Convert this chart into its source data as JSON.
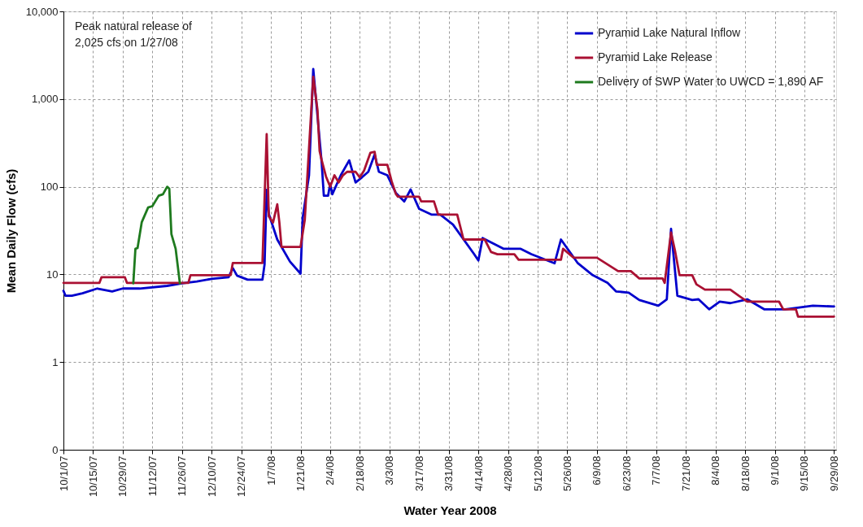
{
  "chart_data": {
    "type": "line",
    "xlabel": "Water Year 2008",
    "ylabel": "Mean Daily Flow (cfs)",
    "annotations": [
      "Peak natural release of\n2,025  cfs on 1/27/08"
    ],
    "xlim": [
      "2007-10-01",
      "2008-09-30"
    ],
    "xticks": [
      {
        "value": "2007-10-01",
        "label": "10/1/07"
      },
      {
        "value": "2007-10-15",
        "label": "10/15/07"
      },
      {
        "value": "2007-10-29",
        "label": "10/29/07"
      },
      {
        "value": "2007-11-12",
        "label": "11/12/07"
      },
      {
        "value": "2007-11-26",
        "label": "11/26/07"
      },
      {
        "value": "2007-12-10",
        "label": "12/10/07"
      },
      {
        "value": "2007-12-24",
        "label": "12/24/07"
      },
      {
        "value": "2008-01-07",
        "label": "1/7/08"
      },
      {
        "value": "2008-01-21",
        "label": "1/21/08"
      },
      {
        "value": "2008-02-04",
        "label": "2/4/08"
      },
      {
        "value": "2008-02-18",
        "label": "2/18/08"
      },
      {
        "value": "2008-03-03",
        "label": "3/3/08"
      },
      {
        "value": "2008-03-17",
        "label": "3/17/08"
      },
      {
        "value": "2008-03-31",
        "label": "3/31/08"
      },
      {
        "value": "2008-04-14",
        "label": "4/14/08"
      },
      {
        "value": "2008-04-28",
        "label": "4/28/08"
      },
      {
        "value": "2008-05-12",
        "label": "5/12/08"
      },
      {
        "value": "2008-05-26",
        "label": "5/26/08"
      },
      {
        "value": "2008-06-09",
        "label": "6/9/08"
      },
      {
        "value": "2008-06-23",
        "label": "6/23/08"
      },
      {
        "value": "2008-07-07",
        "label": "7/7/08"
      },
      {
        "value": "2008-07-21",
        "label": "7/21/08"
      },
      {
        "value": "2008-08-04",
        "label": "8/4/08"
      },
      {
        "value": "2008-08-18",
        "label": "8/18/08"
      },
      {
        "value": "2008-09-01",
        "label": "9/1/08"
      },
      {
        "value": "2008-09-15",
        "label": "9/15/08"
      },
      {
        "value": "2008-09-29",
        "label": "9/29/08"
      }
    ],
    "log": true,
    "ylim": [
      0.1,
      10000
    ],
    "yticks": [
      {
        "value": 0.1,
        "label": "0"
      },
      1,
      10,
      100,
      {
        "value": 1000,
        "label": "1,000"
      },
      {
        "value": 10000,
        "label": "10,000"
      }
    ],
    "grid": true,
    "legend": "top right",
    "line_style": "solid",
    "marker": "none",
    "series": [
      {
        "name": "Pyramid Lake Natural Inflow",
        "color": "#0000cc",
        "x": [
          "2007-10-01",
          "2007-10-02",
          "2007-10-05",
          "2007-10-10",
          "2007-10-17",
          "2007-10-24",
          "2007-10-29",
          "2007-11-06",
          "2007-11-19",
          "2007-11-26",
          "2007-12-03",
          "2007-12-10",
          "2007-12-18",
          "2007-12-20",
          "2007-12-22",
          "2007-12-27",
          "2008-01-03",
          "2008-01-04",
          "2008-01-05",
          "2008-01-06",
          "2008-01-10",
          "2008-01-16",
          "2008-01-21",
          "2008-01-22",
          "2008-01-25",
          "2008-01-27",
          "2008-01-29",
          "2008-01-31",
          "2008-02-01",
          "2008-02-03",
          "2008-02-04",
          "2008-02-05",
          "2008-02-09",
          "2008-02-13",
          "2008-02-16",
          "2008-02-19",
          "2008-02-22",
          "2008-02-25",
          "2008-02-27",
          "2008-03-02",
          "2008-03-06",
          "2008-03-10",
          "2008-03-13",
          "2008-03-17",
          "2008-03-23",
          "2008-03-27",
          "2008-04-02",
          "2008-04-12",
          "2008-04-14",
          "2008-04-16",
          "2008-04-26",
          "2008-05-04",
          "2008-05-09",
          "2008-05-20",
          "2008-05-23",
          "2008-05-31",
          "2008-06-07",
          "2008-06-14",
          "2008-06-18",
          "2008-06-24",
          "2008-06-29",
          "2008-07-08",
          "2008-07-12",
          "2008-07-14",
          "2008-07-17",
          "2008-07-24",
          "2008-07-27",
          "2008-08-01",
          "2008-08-06",
          "2008-08-11",
          "2008-08-19",
          "2008-08-27",
          "2008-09-06",
          "2008-09-19",
          "2008-09-29"
        ],
        "values": [
          6.5,
          5.7,
          5.7,
          6.1,
          6.9,
          6.4,
          6.9,
          6.9,
          7.4,
          7.9,
          8.3,
          8.9,
          9.3,
          11.8,
          9.7,
          8.7,
          8.7,
          13,
          92,
          49,
          25,
          14,
          10.2,
          44,
          135,
          2200,
          640,
          186,
          79,
          79,
          108,
          82,
          135,
          200,
          112,
          128,
          148,
          233,
          148,
          135,
          85,
          68,
          93,
          56,
          48,
          48,
          37,
          17,
          14.4,
          26,
          19.6,
          19.6,
          17,
          13.4,
          25,
          13.4,
          9.8,
          8,
          6.4,
          6.2,
          5.1,
          4.4,
          5.2,
          33,
          5.7,
          5.1,
          5.2,
          4.0,
          4.9,
          4.7,
          5.2,
          4.0,
          4.0,
          4.4,
          4.3
        ]
      },
      {
        "name": "Pyramid Lake Release",
        "color": "#aa1133",
        "x": [
          "2007-10-01",
          "2007-10-18",
          "2007-10-19",
          "2007-10-30",
          "2007-10-31",
          "2007-11-29",
          "2007-11-30",
          "2007-12-19",
          "2007-12-20",
          "2008-01-03",
          "2008-01-05",
          "2008-01-06",
          "2008-01-08",
          "2008-01-10",
          "2008-01-11",
          "2008-01-12",
          "2008-01-21",
          "2008-01-23",
          "2008-01-27",
          "2008-01-29",
          "2008-01-30",
          "2008-01-31",
          "2008-02-02",
          "2008-02-04",
          "2008-02-06",
          "2008-02-08",
          "2008-02-10",
          "2008-02-12",
          "2008-02-16",
          "2008-02-18",
          "2008-02-20",
          "2008-02-23",
          "2008-02-25",
          "2008-02-26",
          "2008-03-02",
          "2008-03-04",
          "2008-03-06",
          "2008-03-07",
          "2008-03-17",
          "2008-03-18",
          "2008-03-24",
          "2008-03-26",
          "2008-04-04",
          "2008-04-07",
          "2008-04-17",
          "2008-04-20",
          "2008-04-23",
          "2008-05-01",
          "2008-05-03",
          "2008-05-23",
          "2008-05-24",
          "2008-05-29",
          "2008-06-09",
          "2008-06-19",
          "2008-06-25",
          "2008-06-29",
          "2008-07-10",
          "2008-07-11",
          "2008-07-14",
          "2008-07-16",
          "2008-07-18",
          "2008-07-24",
          "2008-07-26",
          "2008-07-30",
          "2008-08-11",
          "2008-08-15",
          "2008-08-19",
          "2008-09-03",
          "2008-09-05",
          "2008-09-11",
          "2008-09-12",
          "2008-09-29"
        ],
        "values": [
          8,
          8,
          9.3,
          9.3,
          8,
          8,
          9.8,
          9.8,
          13.5,
          13.5,
          398,
          46,
          39,
          63,
          39,
          20.6,
          20.6,
          42,
          1800,
          750,
          255,
          200,
          131,
          100,
          135,
          112,
          135,
          148,
          148,
          128,
          153,
          244,
          250,
          178,
          178,
          116,
          83,
          77,
          77,
          68,
          68,
          48,
          48,
          25,
          25,
          18,
          17,
          17,
          14.7,
          14.7,
          19.6,
          15.5,
          15.5,
          10.9,
          10.9,
          9,
          9,
          8,
          30,
          18,
          9.8,
          9.8,
          7.7,
          6.7,
          6.7,
          5.7,
          4.9,
          4.9,
          4.0,
          4.0,
          3.3,
          3.3
        ]
      },
      {
        "name": "Delivery of SWP Water to UWCD = 1,890 AF",
        "color": "#1e7a1e",
        "x": [
          "2007-11-03",
          "2007-11-04",
          "2007-11-05",
          "2007-11-07",
          "2007-11-10",
          "2007-11-12",
          "2007-11-15",
          "2007-11-17",
          "2007-11-19",
          "2007-11-20",
          "2007-11-21",
          "2007-11-23",
          "2007-11-25"
        ],
        "values": [
          7.9,
          19.6,
          20,
          39.5,
          58,
          60,
          79,
          82,
          100,
          95,
          28.8,
          19.6,
          7.9
        ]
      }
    ]
  }
}
